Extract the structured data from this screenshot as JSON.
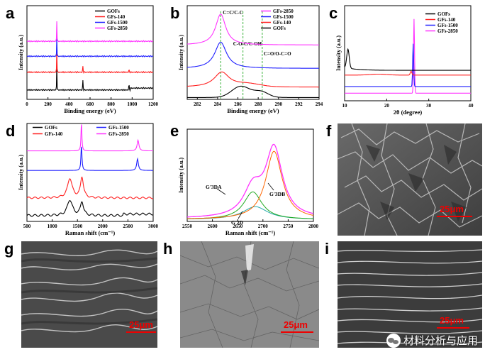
{
  "panels": {
    "a": {
      "label": "a",
      "xlabel": "Binding energy (eV)",
      "ylabel": "Intensity (a.u.)"
    },
    "b": {
      "label": "b",
      "xlabel": "Binding energy (eV)",
      "ylabel": "Intensity (a.u.)",
      "annotations": [
        "C=C/C-C",
        "C-O-C/C-OH",
        "C=O/O-C=O"
      ]
    },
    "c": {
      "label": "c",
      "xlabel": "2θ (degree)",
      "ylabel": "Intensity (a.u.)"
    },
    "d": {
      "label": "d",
      "xlabel": "Raman shift (cm⁻¹)",
      "ylabel": "Intensity (a.u.)"
    },
    "e": {
      "label": "e",
      "xlabel": "Raman shift (cm⁻¹)",
      "ylabel": "Intensity (a.u.)"
    },
    "f": {
      "label": "f",
      "scale": "25μm"
    },
    "g": {
      "label": "g",
      "scale": "25μm"
    },
    "h": {
      "label": "h",
      "scale": "25μm"
    },
    "i": {
      "label": "i",
      "scale": "25μm"
    }
  },
  "legend": {
    "gofs": "GOFs",
    "gfs140": "GFs-140",
    "gfs1500": "GFs-1500",
    "gfs2850": "GFs-2850"
  },
  "colors": {
    "gofs": "#000000",
    "gfs140": "#ff2020",
    "gfs1500": "#2020ff",
    "gfs2850": "#ff33ff",
    "green": "#22aa22",
    "orange": "#ff6600",
    "cyan": "#22aaaa",
    "scale": "#ee0000"
  },
  "watermark": "材料分析与应用",
  "chart_data": [
    {
      "id": "a",
      "type": "line",
      "title": "",
      "xlabel": "Binding energy (eV)",
      "ylabel": "Intensity (a.u.)",
      "xlim": [
        0,
        1200
      ],
      "xticks": [
        0,
        200,
        400,
        600,
        800,
        1000,
        1200
      ],
      "series": [
        {
          "name": "GOFs",
          "peaks_eV": [
            284,
            532,
            970
          ]
        },
        {
          "name": "GFs-140",
          "peaks_eV": [
            284,
            532,
            970
          ]
        },
        {
          "name": "GFs-1500",
          "peaks_eV": [
            284
          ]
        },
        {
          "name": "GFs-2850",
          "peaks_eV": [
            284
          ]
        }
      ]
    },
    {
      "id": "b",
      "type": "line",
      "title": "",
      "xlabel": "Binding energy (eV)",
      "ylabel": "Intensity (a.u.)",
      "xlim": [
        281,
        294
      ],
      "xticks": [
        282,
        284,
        286,
        288,
        290,
        292,
        294
      ],
      "reference_lines_eV": [
        284.3,
        286.5,
        288.4
      ],
      "series": [
        {
          "name": "GFs-2850",
          "peak_eV": 284.3
        },
        {
          "name": "GFs-1500",
          "peak_eV": 284.3
        },
        {
          "name": "GFs-140",
          "peak_eV": 284.4
        },
        {
          "name": "GOFs",
          "peaks_eV": [
            286.3,
            288.3
          ]
        }
      ]
    },
    {
      "id": "c",
      "type": "line",
      "title": "",
      "xlabel": "2θ (degree)",
      "ylabel": "Intensity (a.u.)",
      "xlim": [
        10,
        40
      ],
      "xticks": [
        10,
        20,
        30,
        40
      ],
      "series": [
        {
          "name": "GOFs",
          "peak_deg": 10.8
        },
        {
          "name": "GFs-140",
          "peak_deg": 25.8
        },
        {
          "name": "GFs-1500",
          "peak_deg": 26.3
        },
        {
          "name": "GFs-2850",
          "peak_deg": 26.5
        }
      ]
    },
    {
      "id": "d",
      "type": "line",
      "title": "",
      "xlabel": "Raman shift (cm⁻¹)",
      "ylabel": "Intensity (a.u.)",
      "xlim": [
        500,
        3000
      ],
      "xticks": [
        500,
        1000,
        1500,
        2000,
        2500,
        3000
      ],
      "series": [
        {
          "name": "GOFs",
          "peaks_cm": [
            1350,
            1590
          ]
        },
        {
          "name": "GFs-140",
          "peaks_cm": [
            1350,
            1590
          ]
        },
        {
          "name": "GFs-1500",
          "peaks_cm": [
            1580,
            2690
          ]
        },
        {
          "name": "GFs-2850",
          "peaks_cm": [
            1580,
            2700
          ]
        }
      ]
    },
    {
      "id": "e",
      "type": "line",
      "title": "",
      "xlabel": "Raman shift (cm⁻¹)",
      "ylabel": "Intensity (a.u.)",
      "xlim": [
        2550,
        2800
      ],
      "xticks": [
        2550,
        2600,
        2650,
        2700,
        2750,
        2800
      ],
      "peak_labels": [
        "G'3DA",
        "G'3DB",
        "G'2D"
      ],
      "series": [
        {
          "name": "measured",
          "peak_cm": 2720
        },
        {
          "name": "G'3DA",
          "peak_cm": 2680
        },
        {
          "name": "G'3DB",
          "peak_cm": 2722
        },
        {
          "name": "G'2D",
          "peak_cm": 2685
        }
      ]
    }
  ]
}
